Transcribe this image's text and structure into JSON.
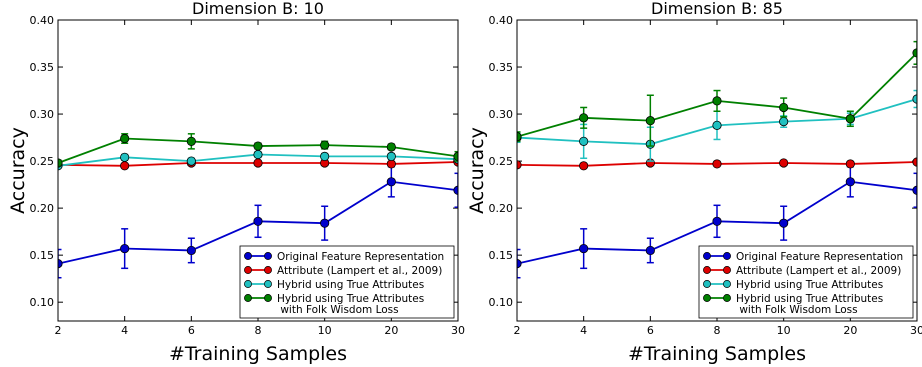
{
  "chart_data": [
    {
      "type": "line",
      "title": "Dimension B: 10",
      "xlabel": "#Training Samples",
      "ylabel": "Accuracy",
      "categories": [
        "2",
        "4",
        "6",
        "8",
        "10",
        "20",
        "30"
      ],
      "ylim": [
        0.08,
        0.4
      ],
      "yticks": [
        "0.10",
        "0.15",
        "0.20",
        "0.25",
        "0.30",
        "0.35",
        "0.40"
      ],
      "grid": false,
      "legend_position": "lower-right",
      "series": [
        {
          "name": "Original Feature Representation",
          "color": "#0000cc",
          "values": [
            0.141,
            0.157,
            0.155,
            0.186,
            0.184,
            0.228,
            0.219
          ],
          "errors": [
            0.015,
            0.021,
            0.013,
            0.017,
            0.018,
            0.016,
            0.018
          ]
        },
        {
          "name": "Attribute (Lampert et al., 2009)",
          "color": "#dd0000",
          "values": [
            0.246,
            0.245,
            0.248,
            0.248,
            0.248,
            0.247,
            0.249
          ],
          "errors": [
            0.002,
            0.002,
            0.002,
            0.002,
            0.002,
            0.002,
            0.002
          ]
        },
        {
          "name": "Hybrid using True Attributes",
          "color": "#20c0c0",
          "values": [
            0.245,
            0.254,
            0.25,
            0.257,
            0.255,
            0.255,
            0.252
          ],
          "errors": [
            0.002,
            0.003,
            0.003,
            0.003,
            0.003,
            0.003,
            0.003
          ]
        },
        {
          "name": "Hybrid using True Attributes\n with Folk Wisdom Loss",
          "color": "#008000",
          "values": [
            0.248,
            0.274,
            0.271,
            0.266,
            0.267,
            0.265,
            0.255
          ],
          "errors": [
            0.003,
            0.005,
            0.008,
            0.003,
            0.004,
            0.003,
            0.005
          ]
        }
      ]
    },
    {
      "type": "line",
      "title": "Dimension B: 85",
      "xlabel": "#Training Samples",
      "ylabel": "Accuracy",
      "categories": [
        "2",
        "4",
        "6",
        "8",
        "10",
        "20",
        "30"
      ],
      "ylim": [
        0.08,
        0.4
      ],
      "yticks": [
        "0.10",
        "0.15",
        "0.20",
        "0.25",
        "0.30",
        "0.35",
        "0.40"
      ],
      "grid": false,
      "legend_position": "lower-right",
      "series": [
        {
          "name": "Original Feature Representation",
          "color": "#0000cc",
          "values": [
            0.141,
            0.157,
            0.155,
            0.186,
            0.184,
            0.228,
            0.219
          ],
          "errors": [
            0.015,
            0.021,
            0.013,
            0.017,
            0.018,
            0.016,
            0.018
          ]
        },
        {
          "name": "Attribute (Lampert et al., 2009)",
          "color": "#dd0000",
          "values": [
            0.246,
            0.245,
            0.248,
            0.247,
            0.248,
            0.247,
            0.249
          ],
          "errors": [
            0.002,
            0.002,
            0.002,
            0.002,
            0.002,
            0.002,
            0.002
          ]
        },
        {
          "name": "Hybrid using True Attributes",
          "color": "#20c0c0",
          "values": [
            0.275,
            0.271,
            0.268,
            0.288,
            0.292,
            0.295,
            0.316
          ],
          "errors": [
            0.005,
            0.018,
            0.018,
            0.015,
            0.006,
            0.006,
            0.009
          ]
        },
        {
          "name": "Hybrid using True Attributes\n with Folk Wisdom Loss",
          "color": "#008000",
          "values": [
            0.276,
            0.296,
            0.293,
            0.314,
            0.307,
            0.295,
            0.365
          ],
          "errors": [
            0.005,
            0.011,
            0.027,
            0.011,
            0.01,
            0.008,
            0.012
          ]
        }
      ]
    }
  ]
}
